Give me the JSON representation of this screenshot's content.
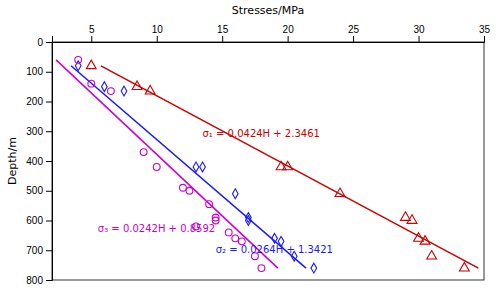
{
  "chart_data": {
    "type": "scatter",
    "xlabel": "Stresses/MPa",
    "ylabel": "Depth/m",
    "xlim": [
      2,
      35
    ],
    "ylim": [
      800,
      0
    ],
    "xticks": [
      5,
      10,
      15,
      20,
      25,
      30,
      35
    ],
    "yticks": [
      0,
      100,
      200,
      300,
      400,
      500,
      600,
      700,
      800
    ],
    "grid": false,
    "series": [
      {
        "type": "line",
        "color": "#cc0000",
        "x": [
          5.7381,
          34.5701
        ],
        "values": [
          80,
          760
        ]
      },
      {
        "type": "line",
        "color": "#1a1aff",
        "x": [
          3.4541,
          21.4061
        ],
        "values": [
          80,
          760
        ]
      },
      {
        "type": "line",
        "color": "#cc00cc",
        "x": [
          2.3112,
          19.2512
        ],
        "values": [
          60,
          760
        ]
      },
      {
        "type": "scatter",
        "marker": "triangle",
        "color": "#cc0000",
        "x": [
          5.0,
          8.5,
          9.5,
          19.5,
          20.0,
          24.0,
          29.0,
          29.5,
          30.0,
          30.5,
          31.0,
          33.5
        ],
        "values": [
          80,
          150,
          165,
          420,
          420,
          510,
          590,
          600,
          660,
          670,
          720,
          760
        ]
      },
      {
        "type": "scatter",
        "marker": "diamond",
        "color": "#1a1aff",
        "x": [
          4.0,
          6.0,
          7.5,
          13.0,
          13.5,
          16.0,
          17.0,
          17.0,
          19.0,
          19.5,
          20.5,
          22.0
        ],
        "values": [
          80,
          150,
          165,
          420,
          420,
          510,
          590,
          600,
          660,
          670,
          720,
          760
        ]
      },
      {
        "type": "scatter",
        "marker": "circle",
        "color": "#cc00cc",
        "x": [
          4.0,
          5.0,
          6.5,
          9.0,
          10.0,
          12.0,
          12.5,
          14.0,
          14.5,
          14.5,
          13.0,
          15.5,
          16.0,
          16.5,
          17.5,
          18.0
        ],
        "values": [
          60,
          140,
          165,
          370,
          420,
          490,
          500,
          545,
          590,
          600,
          620,
          640,
          660,
          670,
          720,
          760
        ]
      }
    ],
    "annotations": [
      {
        "text": "σ₁ = 0.0424H + 2.3461",
        "x": 13.5,
        "y": 310,
        "color": "#cc0000"
      },
      {
        "text": "σ₂ = 0.0264H + 1.3421",
        "x": 14.5,
        "y": 700,
        "color": "#1a1aff"
      },
      {
        "text": "σ₃ = 0.0242H + 0.8592",
        "x": 5.5,
        "y": 627,
        "color": "#cc00cc"
      }
    ]
  }
}
